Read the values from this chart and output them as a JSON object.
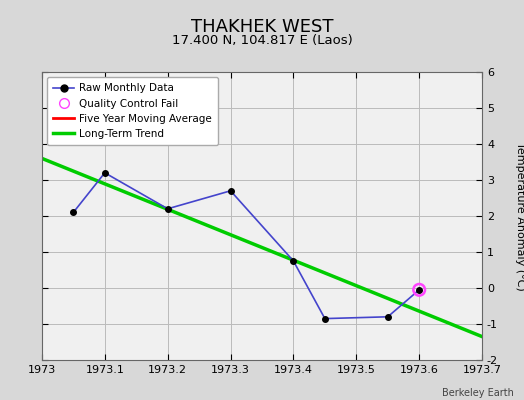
{
  "title": "THAKHEK WEST",
  "subtitle": "17.400 N, 104.817 E (Laos)",
  "watermark": "Berkeley Earth",
  "raw_x": [
    1973.05,
    1973.1,
    1973.2,
    1973.3,
    1973.4,
    1973.45,
    1973.55,
    1973.6
  ],
  "raw_y": [
    2.1,
    3.2,
    2.2,
    2.7,
    0.75,
    -0.85,
    -0.8,
    -0.05
  ],
  "qc_fail_x": [
    1973.6
  ],
  "qc_fail_y": [
    -0.05
  ],
  "trend_x": [
    1973.0,
    1973.7
  ],
  "trend_y": [
    3.6,
    -1.35
  ],
  "xlim": [
    1973.0,
    1973.7
  ],
  "ylim": [
    -2,
    6
  ],
  "yticks": [
    -2,
    -1,
    0,
    1,
    2,
    3,
    4,
    5,
    6
  ],
  "xticks": [
    1973.0,
    1973.1,
    1973.2,
    1973.3,
    1973.4,
    1973.5,
    1973.6,
    1973.7
  ],
  "raw_color": "#4444cc",
  "raw_marker_color": "#000000",
  "trend_color": "#00cc00",
  "ma_color": "#ff0000",
  "qc_color": "#ff44ff",
  "bg_color": "#d8d8d8",
  "plot_bg_color": "#f0f0f0",
  "grid_color": "#bbbbbb",
  "title_fontsize": 13,
  "subtitle_fontsize": 9.5,
  "tick_fontsize": 8,
  "ylabel": "Temperature Anomaly (°C)",
  "ylabel_fontsize": 8
}
